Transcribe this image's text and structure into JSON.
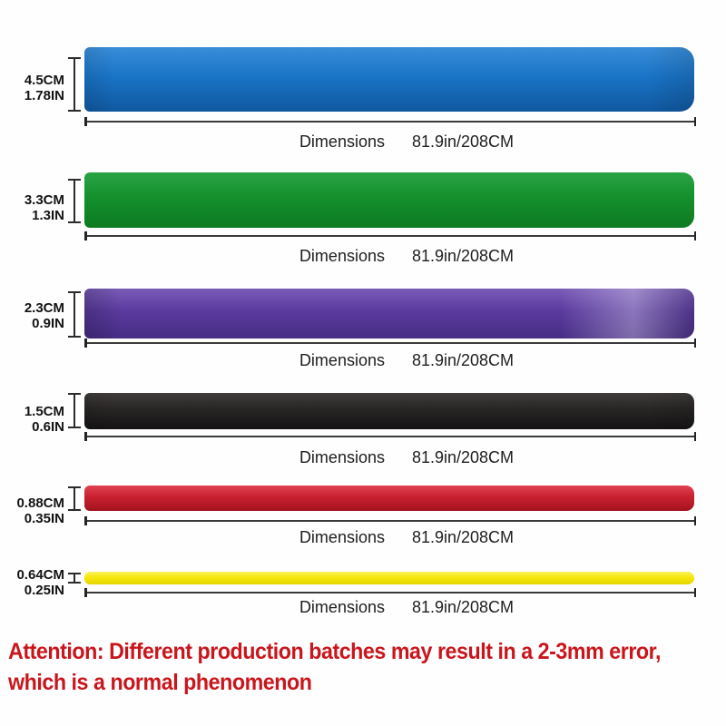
{
  "bands": [
    {
      "id": "blue",
      "size_cm": "4.5CM",
      "size_in": "1.78IN",
      "color": "#1a74c7",
      "color_light": "#3a8ed9",
      "color_dark": "#1058a0"
    },
    {
      "id": "green",
      "size_cm": "3.3CM",
      "size_in": "1.3IN",
      "color": "#14902d",
      "color_light": "#2aa345",
      "color_dark": "#0d7a22"
    },
    {
      "id": "purple",
      "size_cm": "2.3CM",
      "size_in": "0.9IN",
      "color": "#5a3a9e",
      "color_light": "#7a5cb8",
      "color_dark": "#472d85"
    },
    {
      "id": "black",
      "size_cm": "1.5CM",
      "size_in": "0.6IN",
      "color": "#282525",
      "color_light": "#403c3c",
      "color_dark": "#151313"
    },
    {
      "id": "red",
      "size_cm": "0.88CM",
      "size_in": "0.35IN",
      "color": "#c92030",
      "color_light": "#e04352",
      "color_dark": "#a3131f"
    },
    {
      "id": "yellow",
      "size_cm": "0.64CM",
      "size_in": "0.25IN",
      "color": "#f6e70c",
      "color_light": "#faf25c",
      "color_dark": "#e5d400"
    }
  ],
  "dimensions": {
    "label": "Dimensions",
    "value": "81.9in/208CM"
  },
  "attention": {
    "line1": "Attention: Different production batches may result in a 2-3mm error,",
    "line2": "which is a normal phenomenon",
    "color": "#c9161c"
  }
}
